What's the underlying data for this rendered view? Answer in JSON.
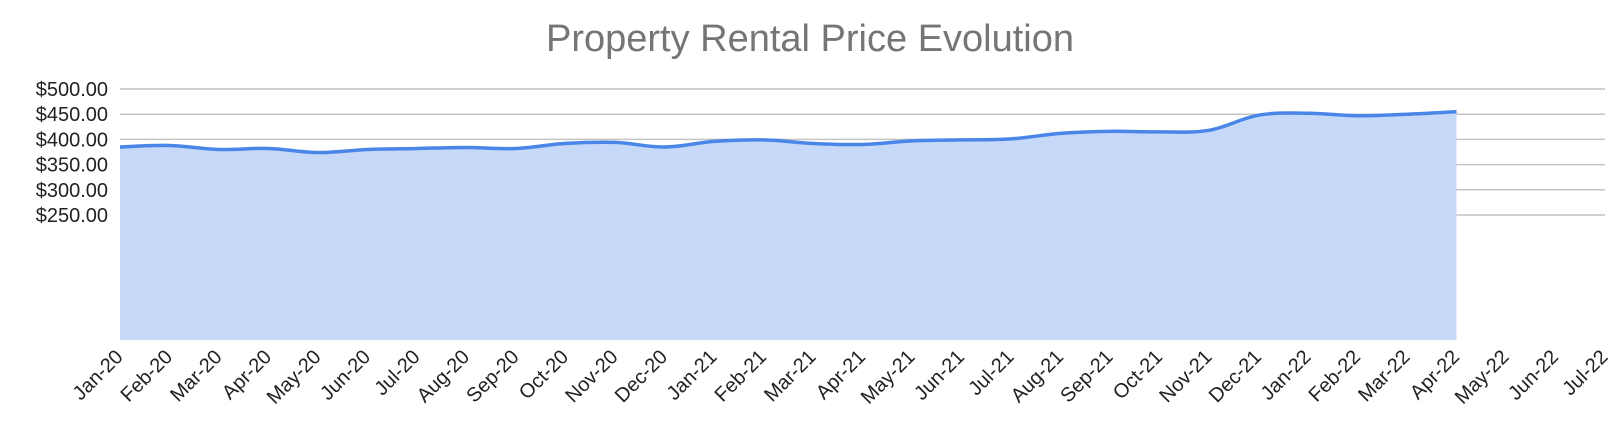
{
  "chart_data": {
    "type": "area",
    "title": "Property Rental Price Evolution",
    "xlabel": "",
    "ylabel": "",
    "ylim": [
      0,
      500
    ],
    "y_ticks": [
      "$250.00",
      "$300.00",
      "$350.00",
      "$400.00",
      "$450.00",
      "$500.00"
    ],
    "y_tick_values": [
      250,
      300,
      350,
      400,
      450,
      500
    ],
    "x": [
      "Jan-20",
      "Feb-20",
      "Mar-20",
      "Apr-20",
      "May-20",
      "Jun-20",
      "Jul-20",
      "Aug-20",
      "Sep-20",
      "Oct-20",
      "Nov-20",
      "Dec-20",
      "Jan-21",
      "Feb-21",
      "Mar-21",
      "Apr-21",
      "May-21",
      "Jun-21",
      "Jul-21",
      "Aug-21",
      "Sep-21",
      "Oct-21",
      "Nov-21",
      "Dec-21",
      "Jan-22",
      "Feb-22",
      "Mar-22",
      "Apr-22",
      "May-22",
      "Jun-22",
      "Jul-22"
    ],
    "series": [
      {
        "values": [
          385,
          388,
          380,
          382,
          374,
          380,
          382,
          384,
          382,
          392,
          394,
          385,
          396,
          399,
          392,
          390,
          397,
          399,
          401,
          412,
          416,
          415,
          418,
          448,
          452,
          447,
          450,
          455,
          null,
          null,
          null
        ]
      }
    ],
    "grid": true,
    "legend": "none",
    "colors": {
      "line": "#4a86e8",
      "fill": "#c6d9f8",
      "grid": "#c4c4c4",
      "title": "#757575"
    }
  }
}
